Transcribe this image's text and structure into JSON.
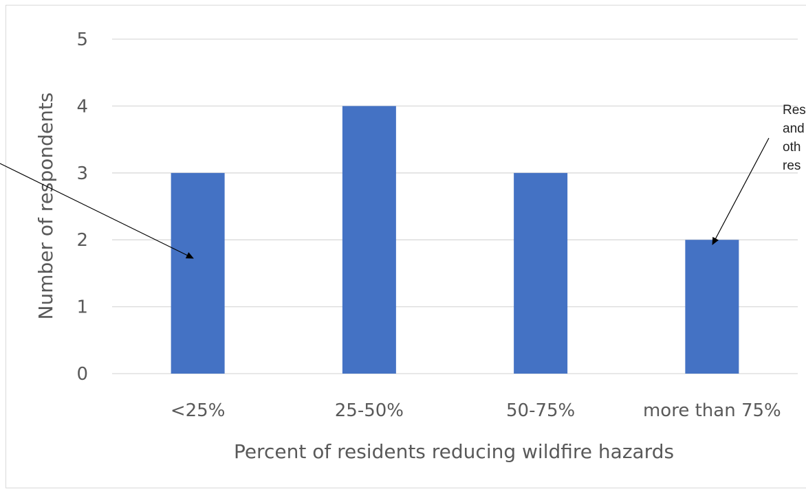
{
  "chart_data": {
    "type": "bar",
    "categories": [
      "<25%",
      "25-50%",
      "50-75%",
      "more than 75%"
    ],
    "values": [
      3,
      4,
      3,
      2
    ],
    "xlabel": "Percent of residents reducing wildfire hazards",
    "ylabel": "Number of respondents",
    "ylim": [
      0,
      5
    ],
    "yticks": [
      0,
      1,
      2,
      3,
      4,
      5
    ],
    "grid": true,
    "legend": "none",
    "bar_color": "#4472C4",
    "grid_color": "#D9D9D9",
    "annotations": [
      {
        "target_category": "more than 75%",
        "lines": [
          "Res",
          "and",
          "oth",
          "res"
        ]
      },
      {
        "target_category": "<25%",
        "lines": []
      }
    ]
  }
}
